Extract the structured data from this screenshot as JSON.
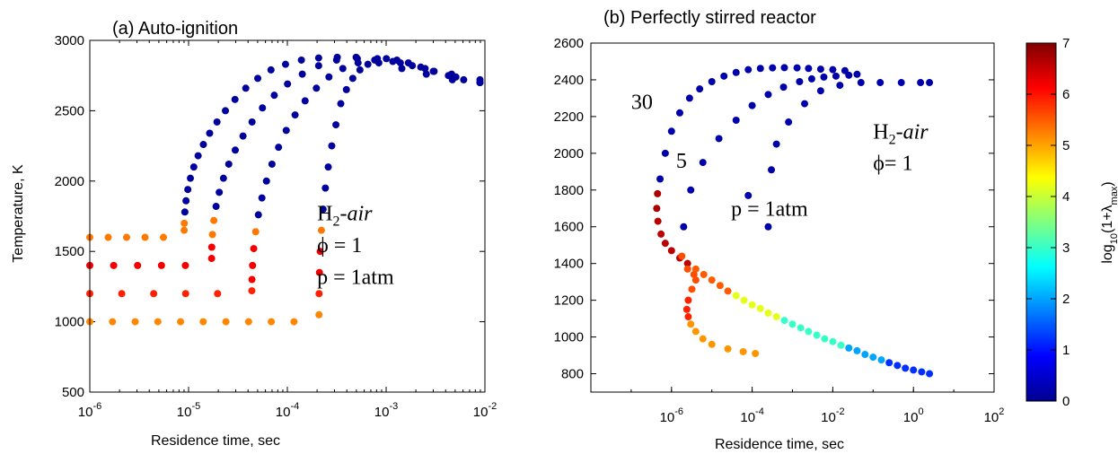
{
  "chart_data": [
    {
      "type": "scatter",
      "title": "(a) Auto-ignition",
      "xlabel": "Residence time, sec",
      "ylabel": "Temperature, K",
      "xscale": "log",
      "xlim": [
        1e-06,
        0.01
      ],
      "ylim": [
        500,
        3000
      ],
      "x_ticks": [
        "-6",
        "-5",
        "-4",
        "-3",
        "-2"
      ],
      "x_tick_base": "10",
      "y_ticks": [
        "500",
        "1000",
        "1500",
        "2000",
        "2500",
        "3000"
      ],
      "annotations": [
        {
          "prefix": "H",
          "sub": "2",
          "suffix": "-air",
          "tx": 0.0002,
          "ty": 1720
        },
        {
          "text": "ϕ = 1",
          "tx": 0.0002,
          "ty": 1495
        },
        {
          "text": "p = 1atm",
          "tx": 0.0002,
          "ty": 1270
        }
      ],
      "series": [
        {
          "initial_temperature": 1600,
          "ignition_time": 9.5e-06,
          "temperatures": [
            1600,
            1600,
            1600,
            1600,
            1600,
            1650,
            1700,
            1780,
            1860,
            1940,
            2020,
            2100,
            2180,
            2260,
            2340,
            2420,
            2500,
            2580,
            2660,
            2730,
            2790,
            2830,
            2860,
            2875,
            2880,
            2870,
            2840,
            2800,
            2760,
            2720,
            2700
          ]
        },
        {
          "initial_temperature": 1400,
          "ignition_time": 1.8e-05,
          "temperatures": [
            1400,
            1400,
            1400,
            1400,
            1400,
            1450,
            1530,
            1620,
            1720,
            1820,
            1920,
            2020,
            2120,
            2220,
            2320,
            2420,
            2520,
            2610,
            2690,
            2760,
            2820,
            2860,
            2880,
            2870,
            2840,
            2800,
            2760,
            2720
          ]
        },
        {
          "initial_temperature": 1200,
          "ignition_time": 4.6e-05,
          "temperatures": [
            1200,
            1200,
            1200,
            1200,
            1200,
            1220,
            1300,
            1400,
            1520,
            1640,
            1760,
            1880,
            2000,
            2120,
            2240,
            2360,
            2470,
            2570,
            2660,
            2740,
            2800,
            2840,
            2860,
            2850,
            2820,
            2780,
            2740,
            2700
          ]
        },
        {
          "initial_temperature": 1000,
          "ignition_time": 0.00022,
          "temperatures": [
            1000,
            1000,
            1000,
            1000,
            1000,
            1000,
            1000,
            1000,
            1000,
            1000,
            1050,
            1200,
            1350,
            1500,
            1650,
            1800,
            1950,
            2100,
            2250,
            2400,
            2550,
            2650,
            2730,
            2790,
            2830,
            2860,
            2870,
            2860,
            2840,
            2810,
            2780,
            2750,
            2720,
            2700
          ]
        }
      ]
    },
    {
      "type": "scatter",
      "title": "(b) Perfectly stirred reactor",
      "xlabel": "Residence time, sec",
      "xscale": "log",
      "xlim": [
        1e-08,
        100
      ],
      "ylim": [
        700,
        2600
      ],
      "x_ticks": [
        "-6",
        "-4",
        "-2",
        "0",
        "2"
      ],
      "x_tick_base": "10",
      "y_ticks": [
        "800",
        "1000",
        "1200",
        "1400",
        "1600",
        "1800",
        "2000",
        "2200",
        "2400",
        "2600"
      ],
      "annotations": [
        {
          "text": "30",
          "tx": 1e-07,
          "ty": 2240
        },
        {
          "text": "5",
          "tx": 1.3e-06,
          "ty": 1920
        },
        {
          "text": "p = 1atm",
          "tx": 3e-05,
          "ty": 1660
        },
        {
          "prefix": "H",
          "sub": "2",
          "suffix": "-air",
          "tx": 0.1,
          "ty": 2080
        },
        {
          "text": "ϕ= 1",
          "tx": 0.1,
          "ty": 1910
        }
      ],
      "series": [
        {
          "name": "30",
          "points": [
            [
              2.5,
              800
            ],
            [
              1.6,
              810
            ],
            [
              1.0,
              820
            ],
            [
              0.63,
              830
            ],
            [
              0.4,
              845
            ],
            [
              0.25,
              860
            ],
            [
              0.16,
              875
            ],
            [
              0.1,
              890
            ],
            [
              0.063,
              905
            ],
            [
              0.04,
              925
            ],
            [
              0.025,
              940
            ],
            [
              0.016,
              955
            ],
            [
              0.01,
              975
            ],
            [
              0.0063,
              990
            ],
            [
              0.004,
              1010
            ],
            [
              0.0025,
              1030
            ],
            [
              0.0016,
              1050
            ],
            [
              0.001,
              1070
            ],
            [
              0.00063,
              1090
            ],
            [
              0.0004,
              1110
            ],
            [
              0.00025,
              1130
            ],
            [
              0.00016,
              1155
            ],
            [
              0.0001,
              1175
            ],
            [
              6.3e-05,
              1200
            ],
            [
              4e-05,
              1225
            ],
            [
              2.5e-05,
              1250
            ],
            [
              1.6e-05,
              1280
            ],
            [
              1e-05,
              1310
            ],
            [
              6.3e-06,
              1340
            ],
            [
              4e-06,
              1370
            ],
            [
              2.5e-06,
              1400
            ],
            [
              1.6e-06,
              1430
            ],
            [
              1e-06,
              1470
            ],
            [
              7e-07,
              1510
            ],
            [
              5.5e-07,
              1560
            ],
            [
              4.6e-07,
              1630
            ],
            [
              4.3e-07,
              1700
            ],
            [
              4.5e-07,
              1780
            ],
            [
              5.2e-07,
              1860
            ],
            [
              7e-07,
              2000
            ],
            [
              1e-06,
              2120
            ],
            [
              1.6e-06,
              2220
            ],
            [
              2.8e-06,
              2300
            ],
            [
              5e-06,
              2350
            ],
            [
              1e-05,
              2390
            ],
            [
              2e-05,
              2420
            ],
            [
              4e-05,
              2440
            ],
            [
              8e-05,
              2455
            ],
            [
              0.00016,
              2462
            ],
            [
              0.00032,
              2465
            ],
            [
              0.00063,
              2466
            ],
            [
              0.0013,
              2465
            ],
            [
              0.0025,
              2462
            ],
            [
              0.005,
              2458
            ],
            [
              0.01,
              2455
            ],
            [
              0.02,
              2450
            ]
          ]
        },
        {
          "name": "5",
          "points": [
            [
              0.00012,
              910
            ],
            [
              6e-05,
              920
            ],
            [
              2.5e-05,
              935
            ],
            [
              1e-05,
              960
            ],
            [
              6e-06,
              990
            ],
            [
              4e-06,
              1030
            ],
            [
              3e-06,
              1070
            ],
            [
              2.6e-06,
              1110
            ],
            [
              2.4e-06,
              1150
            ],
            [
              2.6e-06,
              1200
            ],
            [
              3.2e-06,
              1260
            ],
            [
              4e-06,
              1310
            ],
            [
              3.6e-06,
              1340
            ],
            [
              2.5e-06,
              1370
            ],
            [
              1.8e-06,
              1440
            ],
            [
              2e-06,
              1600
            ],
            [
              3e-06,
              1800
            ],
            [
              6e-06,
              1950
            ],
            [
              1.5e-05,
              2080
            ],
            [
              4e-05,
              2180
            ],
            [
              0.0001,
              2260
            ],
            [
              0.00025,
              2320
            ],
            [
              0.0006,
              2360
            ],
            [
              0.0015,
              2390
            ],
            [
              0.003,
              2405
            ],
            [
              0.006,
              2415
            ],
            [
              0.012,
              2420
            ],
            [
              0.025,
              2425
            ],
            [
              0.04,
              2430
            ]
          ]
        }
      ]
    }
  ],
  "colorbar": {
    "label": "log10(1+λmax)",
    "label_base": "log",
    "label_sub": "10",
    "label_mid": "(1+λ",
    "label_sub2": "max",
    "label_end": ")",
    "range": [
      0,
      7
    ],
    "ticks": [
      "0",
      "1",
      "2",
      "3",
      "4",
      "5",
      "6",
      "7"
    ],
    "colormap": "jet"
  }
}
